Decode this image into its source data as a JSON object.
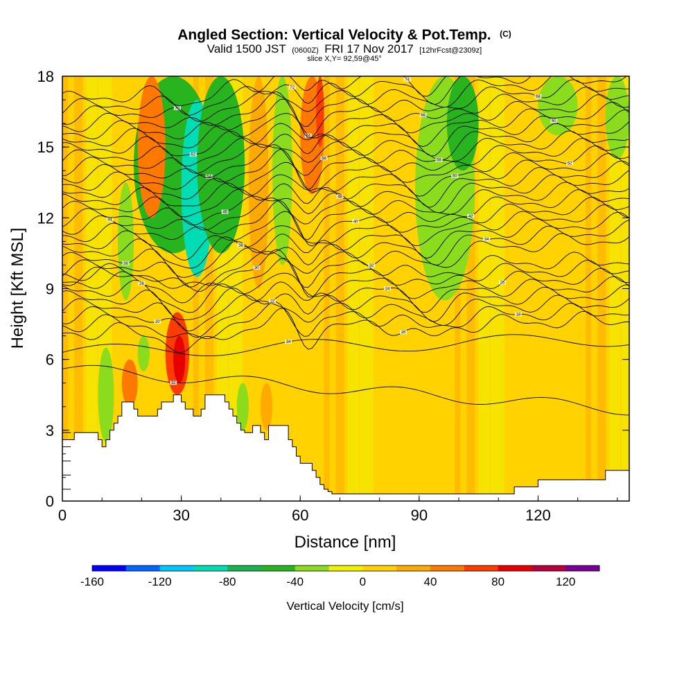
{
  "chart_data": {
    "type": "heatmap",
    "title": "Angled Section: Vertical Velocity & Pot.Temp.",
    "title_unit": "(C)",
    "subtitle": {
      "prefix": "Valid 1500 JST",
      "utc": "(0600Z)",
      "date": "FRI 17 Nov 2017",
      "forecast": "[12hrFcst@2309z]"
    },
    "slice": "slice X,Y= 92,59@45°",
    "xlabel": "Distance [nm]",
    "ylabel": "Height [Kft MSL]",
    "xlim": [
      0,
      143
    ],
    "ylim": [
      0,
      18
    ],
    "x_ticks": [
      "0",
      "30",
      "60",
      "90",
      "120"
    ],
    "x_tick_values": [
      0,
      30,
      60,
      90,
      120
    ],
    "y_ticks": [
      "0",
      "3",
      "6",
      "9",
      "12",
      "15",
      "18"
    ],
    "y_tick_values": [
      0,
      3,
      6,
      9,
      12,
      15,
      18
    ],
    "colorbar": {
      "title": "Vertical Velocity [cm/s]",
      "min": -160,
      "max": 140,
      "step": 20,
      "tick_labels": [
        "-160",
        "-120",
        "-80",
        "-40",
        "0",
        "40",
        "80",
        "120"
      ],
      "tick_values": [
        -160,
        -120,
        -80,
        -40,
        0,
        40,
        80,
        120
      ],
      "colors": [
        "#0000ff",
        "#0066ff",
        "#00c8ff",
        "#00dcb4",
        "#19b450",
        "#28b41e",
        "#8cdc1e",
        "#f0f000",
        "#ffd200",
        "#ffaa00",
        "#ff7800",
        "#ff3c00",
        "#e60000",
        "#b4003c",
        "#780096"
      ]
    },
    "terrain": {
      "x": [
        0,
        2,
        3,
        7,
        9,
        10,
        11,
        12,
        13,
        14,
        15,
        17,
        18,
        19,
        20,
        21,
        23,
        24,
        25,
        26,
        27,
        28,
        29,
        30,
        31,
        32,
        33,
        34,
        35,
        36,
        37,
        38,
        39,
        40,
        41,
        42,
        43,
        44,
        45,
        46,
        47,
        48,
        50,
        51,
        52,
        53,
        54,
        55,
        56,
        57,
        58,
        59,
        60,
        61,
        62,
        63,
        64,
        65,
        66,
        67,
        68,
        70,
        74,
        78,
        82,
        86,
        90,
        95,
        100,
        105,
        110,
        113,
        114,
        115,
        120,
        125,
        127,
        128,
        130,
        132,
        134,
        136,
        137,
        138,
        140,
        142,
        143
      ],
      "y": [
        2.6,
        2.6,
        2.9,
        2.9,
        2.6,
        2.3,
        2.6,
        3.0,
        3.3,
        3.6,
        4.2,
        4.2,
        3.9,
        3.6,
        3.6,
        3.6,
        3.6,
        3.9,
        4.2,
        4.2,
        4.2,
        4.5,
        4.5,
        4.2,
        3.9,
        3.9,
        3.6,
        3.6,
        3.9,
        4.5,
        4.5,
        4.5,
        4.5,
        4.5,
        4.2,
        3.9,
        3.6,
        3.3,
        3.0,
        2.9,
        2.9,
        3.2,
        2.9,
        2.6,
        3.2,
        3.2,
        3.2,
        3.2,
        3.2,
        2.6,
        2.3,
        1.9,
        1.6,
        1.6,
        1.6,
        1.3,
        1.0,
        0.7,
        0.5,
        0.4,
        0.3,
        0.3,
        0.3,
        0.3,
        0.3,
        0.3,
        0.3,
        0.3,
        0.3,
        0.3,
        0.3,
        0.3,
        0.6,
        0.6,
        0.9,
        0.9,
        0.9,
        0.9,
        0.9,
        0.9,
        0.9,
        0.9,
        1.3,
        1.3,
        1.3,
        1.3,
        1.3
      ]
    },
    "velocity_regions": [
      {
        "x": [
          18,
          38
        ],
        "y": [
          10.5,
          18
        ],
        "value": -45
      },
      {
        "x": [
          30,
          38
        ],
        "y": [
          9.5,
          17
        ],
        "value": -90
      },
      {
        "x": [
          34,
          46
        ],
        "y": [
          10.5,
          18
        ],
        "value": -45
      },
      {
        "x": [
          14,
          18
        ],
        "y": [
          8.5,
          13.5
        ],
        "value": -35
      },
      {
        "x": [
          89,
          104
        ],
        "y": [
          8.5,
          18
        ],
        "value": -35
      },
      {
        "x": [
          97,
          105
        ],
        "y": [
          14,
          18
        ],
        "value": -45
      },
      {
        "x": [
          120,
          130
        ],
        "y": [
          15.5,
          18
        ],
        "value": -25
      },
      {
        "x": [
          137,
          143
        ],
        "y": [
          14.5,
          18
        ],
        "value": -25
      },
      {
        "x": [
          53,
          58
        ],
        "y": [
          10,
          18
        ],
        "value": -30
      },
      {
        "x": [
          9,
          13
        ],
        "y": [
          2.5,
          6.5
        ],
        "value": -30
      },
      {
        "x": [
          19,
          22
        ],
        "y": [
          5.5,
          7
        ],
        "value": -25
      },
      {
        "x": [
          44,
          47
        ],
        "y": [
          3,
          5
        ],
        "value": -25
      },
      {
        "x": [
          26,
          32
        ],
        "y": [
          4.5,
          8
        ],
        "value": 75
      },
      {
        "x": [
          28,
          31
        ],
        "y": [
          5,
          7
        ],
        "value": 90
      },
      {
        "x": [
          19,
          26
        ],
        "y": [
          12,
          18
        ],
        "value": 45
      },
      {
        "x": [
          60,
          66
        ],
        "y": [
          13,
          18
        ],
        "value": 45
      },
      {
        "x": [
          64,
          66
        ],
        "y": [
          15,
          18
        ],
        "value": 65
      },
      {
        "x": [
          47,
          52
        ],
        "y": [
          9,
          18
        ],
        "value": 35
      },
      {
        "x": [
          15,
          19
        ],
        "y": [
          4,
          6
        ],
        "value": 45
      },
      {
        "x": [
          50,
          53
        ],
        "y": [
          3,
          5
        ],
        "value": 35
      }
    ],
    "contours": [
      {
        "level": 1,
        "label": "32",
        "shape": "near-ground"
      },
      {
        "level": 2,
        "label": "34",
        "shape": "lower"
      },
      {
        "level": 3,
        "label": "16"
      },
      {
        "level": 4,
        "label": "18"
      },
      {
        "level": 5,
        "label": "20"
      },
      {
        "level": 6,
        "label": "22"
      },
      {
        "level": 7,
        "label": "24"
      },
      {
        "level": 8,
        "label": "26"
      },
      {
        "level": 9,
        "label": "28"
      },
      {
        "level": 10,
        "label": "30"
      },
      {
        "level": 11,
        "label": "32"
      },
      {
        "level": 12,
        "label": "34"
      },
      {
        "level": 13,
        "label": "36"
      },
      {
        "level": 14,
        "label": "38"
      },
      {
        "level": 15,
        "label": "40"
      },
      {
        "level": 16,
        "label": "42"
      },
      {
        "level": 17,
        "label": "44"
      },
      {
        "level": 18,
        "label": "46"
      },
      {
        "level": 19,
        "label": "48"
      },
      {
        "level": 20,
        "label": "50"
      },
      {
        "level": 21,
        "label": "52"
      },
      {
        "level": 22,
        "label": "54"
      },
      {
        "level": 23,
        "label": "56"
      },
      {
        "level": 24,
        "label": "58"
      },
      {
        "level": 25,
        "label": "60"
      },
      {
        "level": 26,
        "label": "62"
      },
      {
        "level": 27,
        "label": "64"
      },
      {
        "level": 28,
        "label": "66"
      },
      {
        "level": 29,
        "label": "68"
      },
      {
        "level": 30,
        "label": "70"
      },
      {
        "level": 31,
        "label": "72"
      },
      {
        "level": 32,
        "label": "74"
      }
    ],
    "grid": false
  }
}
